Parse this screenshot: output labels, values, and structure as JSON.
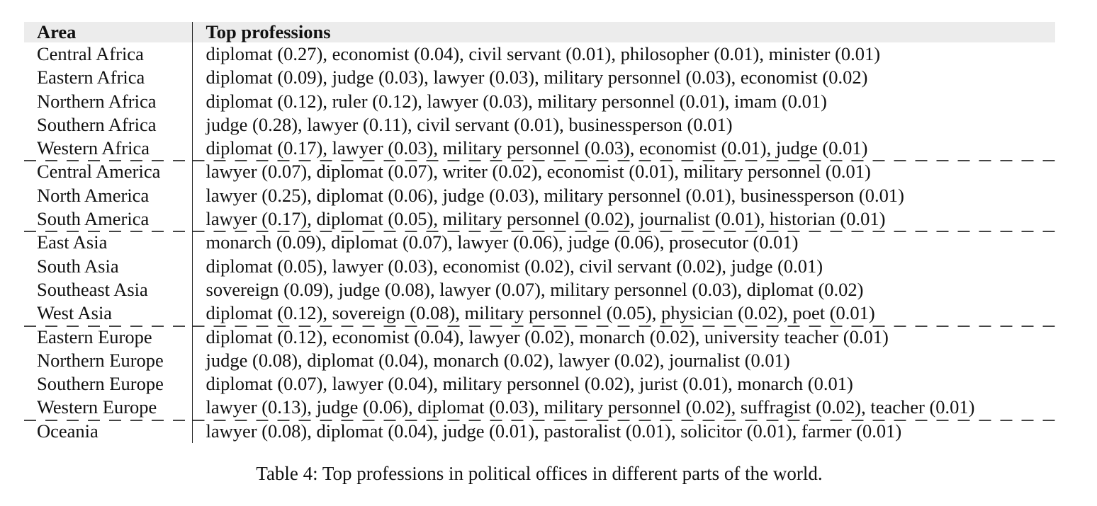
{
  "table": {
    "headers": {
      "area": "Area",
      "professions": "Top professions"
    },
    "rows": [
      {
        "area": "Central Africa",
        "professions": "diplomat (0.27), economist (0.04), civil servant (0.01), philosopher (0.01), minister (0.01)",
        "group_start": false
      },
      {
        "area": "Eastern Africa",
        "professions": "diplomat (0.09), judge (0.03), lawyer (0.03), military personnel (0.03), economist (0.02)",
        "group_start": false
      },
      {
        "area": "Northern Africa",
        "professions": "diplomat (0.12), ruler (0.12), lawyer (0.03), military personnel (0.01), imam (0.01)",
        "group_start": false
      },
      {
        "area": "Southern Africa",
        "professions": "judge (0.28), lawyer (0.11), civil servant (0.01), businessperson (0.01)",
        "group_start": false
      },
      {
        "area": "Western Africa",
        "professions": "diplomat (0.17), lawyer (0.03), military personnel (0.03), economist (0.01), judge (0.01)",
        "group_start": false
      },
      {
        "area": "Central America",
        "professions": "lawyer (0.07), diplomat (0.07), writer (0.02), economist (0.01), military personnel (0.01)",
        "group_start": true
      },
      {
        "area": "North America",
        "professions": "lawyer (0.25), diplomat (0.06), judge (0.03), military personnel (0.01), businessperson (0.01)",
        "group_start": false
      },
      {
        "area": "South America",
        "professions": "lawyer (0.17), diplomat (0.05), military personnel (0.02), journalist (0.01), historian (0.01)",
        "group_start": false
      },
      {
        "area": "East Asia",
        "professions": "monarch (0.09), diplomat (0.07), lawyer (0.06), judge (0.06), prosecutor (0.01)",
        "group_start": true
      },
      {
        "area": "South Asia",
        "professions": "diplomat (0.05), lawyer (0.03), economist (0.02), civil servant (0.02), judge (0.01)",
        "group_start": false
      },
      {
        "area": "Southeast Asia",
        "professions": "sovereign (0.09), judge (0.08), lawyer (0.07), military personnel (0.03), diplomat (0.02)",
        "group_start": false
      },
      {
        "area": "West Asia",
        "professions": "diplomat (0.12), sovereign (0.08), military personnel (0.05), physician (0.02), poet (0.01)",
        "group_start": false
      },
      {
        "area": "Eastern Europe",
        "professions": "diplomat (0.12), economist (0.04), lawyer (0.02), monarch (0.02), university teacher (0.01)",
        "group_start": true
      },
      {
        "area": "Northern Europe",
        "professions": "judge (0.08), diplomat (0.04), monarch (0.02), lawyer (0.02), journalist (0.01)",
        "group_start": false
      },
      {
        "area": "Southern Europe",
        "professions": "diplomat (0.07), lawyer (0.04), military personnel (0.02), jurist (0.01), monarch (0.01)",
        "group_start": false
      },
      {
        "area": "Western Europe",
        "professions": "lawyer (0.13), judge (0.06), diplomat (0.03), military personnel (0.02), suffragist (0.02), teacher (0.01)",
        "group_start": false
      },
      {
        "area": "Oceania",
        "professions": "lawyer (0.08), diplomat (0.04), judge (0.01), pastoralist (0.01), solicitor (0.01), farmer (0.01)",
        "group_start": true
      }
    ]
  },
  "caption": "Table 4: Top professions in political offices in different parts of the world."
}
